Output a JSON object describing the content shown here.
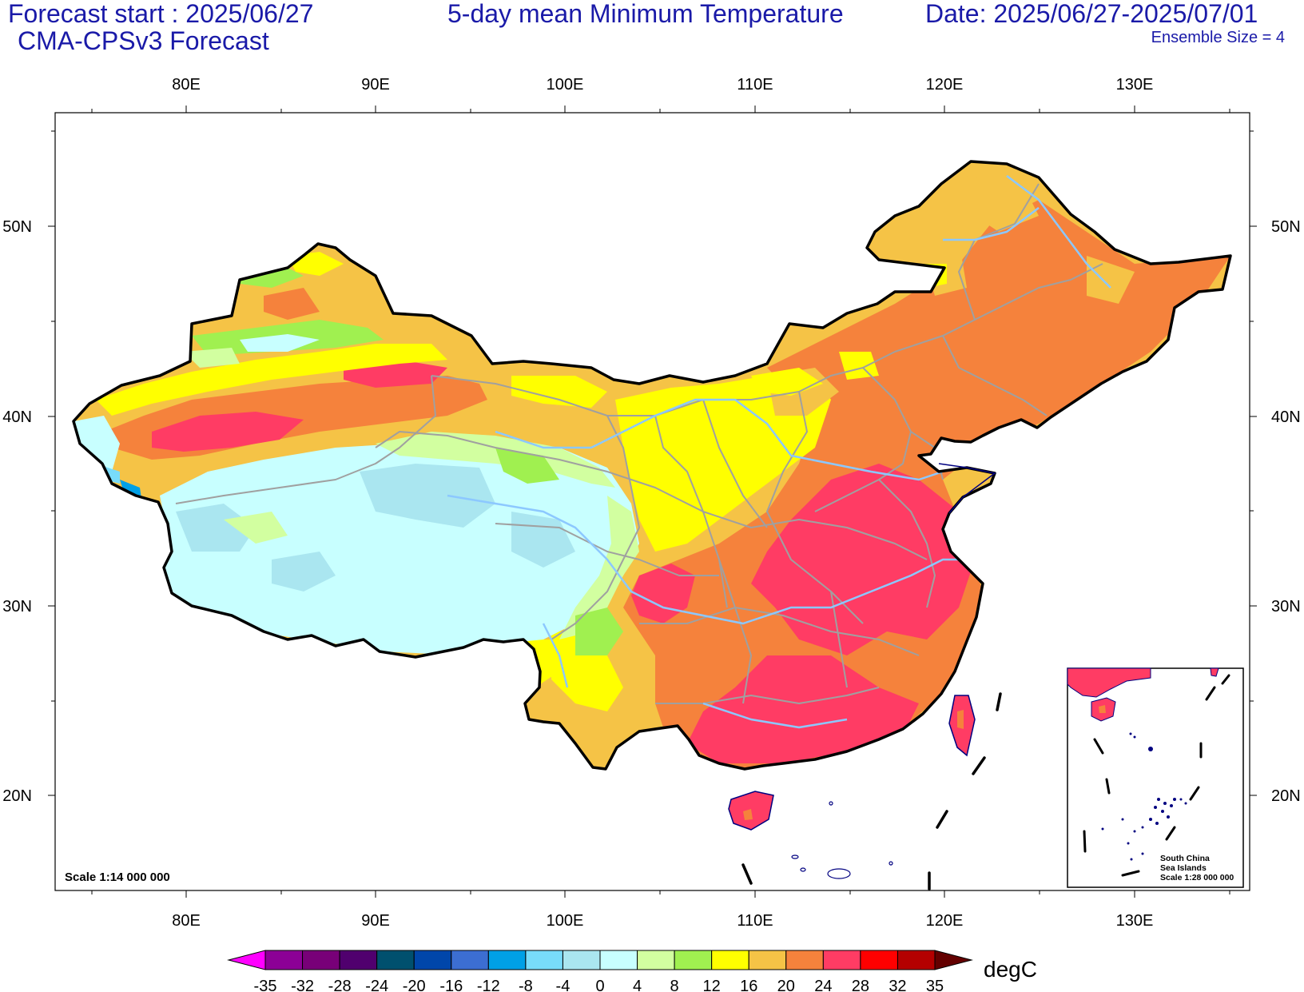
{
  "header": {
    "forecast_start": "Forecast start : 2025/06/27",
    "model": "CMA-CPSv3 Forecast",
    "title": "5-day mean Minimum Temperature",
    "date_range": "Date: 2025/06/27-2025/07/01",
    "ensemble": "Ensemble Size = 4"
  },
  "map": {
    "scale_text": "Scale 1:14 000 000",
    "lon_labels": [
      "80E",
      "90E",
      "100E",
      "110E",
      "120E",
      "130E"
    ],
    "lat_labels": [
      "50N",
      "40N",
      "30N",
      "20N"
    ],
    "inset": {
      "line1": "South China",
      "line2": "Sea Islands",
      "line3": "Scale 1:28 000 000"
    }
  },
  "colorbar": {
    "unit": "degC",
    "ticks": [
      "-35",
      "-32",
      "-28",
      "-24",
      "-20",
      "-16",
      "-12",
      "-8",
      "-4",
      "0",
      "4",
      "8",
      "12",
      "16",
      "20",
      "24",
      "28",
      "32",
      "35"
    ],
    "colors": [
      "#8c0096",
      "#780078",
      "#50006e",
      "#00506e",
      "#0046aa",
      "#3c6ed2",
      "#00a0e6",
      "#78dcfa",
      "#aae6f0",
      "#c8ffff",
      "#d2ffa0",
      "#a0f050",
      "#ffff00",
      "#f5c346",
      "#f5823c",
      "#ff3c64",
      "#ff0000",
      "#b40000"
    ],
    "low_arrow_color": "#ff00ff",
    "high_arrow_color": "#640000"
  },
  "legend_colors": {
    "title_text": "#1a1aa8",
    "province_lines": "#a0a0a0",
    "rivers": "#8cc8ff",
    "coastline": "#000080"
  }
}
